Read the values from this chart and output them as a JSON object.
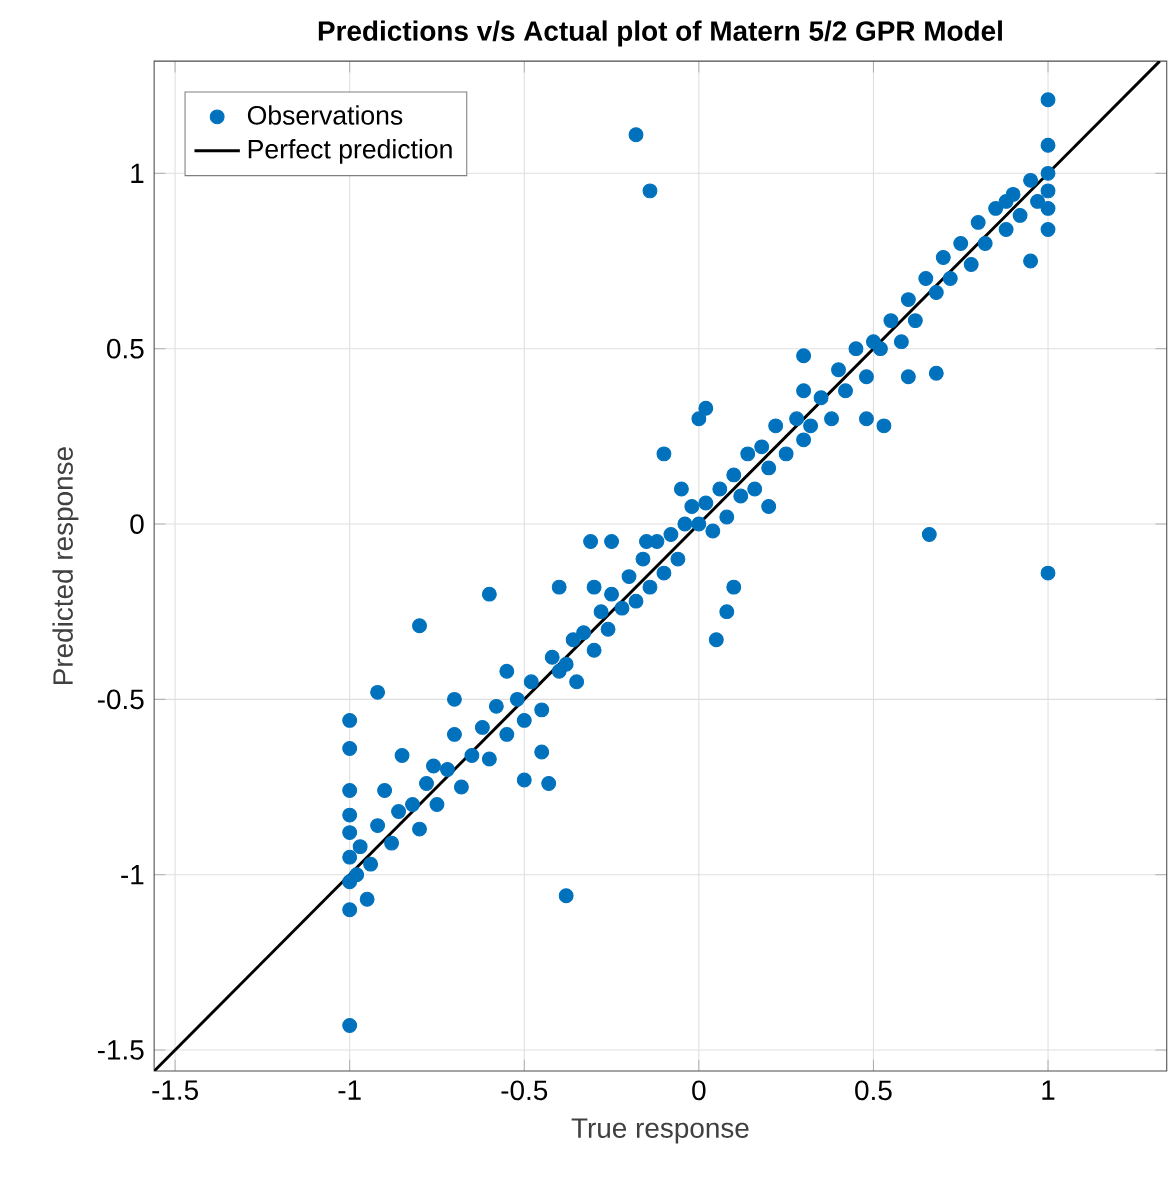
{
  "chart_data": {
    "type": "scatter",
    "title": "Predictions v/s Actual plot of Matern 5/2 GPR Model",
    "xlabel": "True response",
    "ylabel": "Predicted response",
    "xlim": [
      -1.56,
      1.34
    ],
    "ylim": [
      -1.56,
      1.32
    ],
    "xticks": [
      -1.5,
      -1,
      -0.5,
      0,
      0.5,
      1
    ],
    "yticks": [
      -1.5,
      -1,
      -0.5,
      0,
      0.5,
      1
    ],
    "grid": true,
    "legend": "top left",
    "marker": "circle",
    "series": [
      {
        "name": "Observations",
        "color": "#0072bd",
        "x": [
          -1,
          -1,
          -1,
          -1,
          -1,
          -1,
          -1,
          -0.98,
          -0.97,
          -0.95,
          -0.94,
          -0.92,
          -0.9,
          -0.88,
          -0.86,
          -0.85,
          -0.82,
          -0.8,
          -0.78,
          -0.76,
          -0.75,
          -0.72,
          -0.7,
          -0.68,
          -0.65,
          -0.62,
          -0.6,
          -0.58,
          -0.55,
          -0.52,
          -0.5,
          -0.5,
          -0.48,
          -0.45,
          -0.43,
          -0.42,
          -0.4,
          -0.38,
          -0.36,
          -0.35,
          -0.33,
          -0.3,
          -0.3,
          -0.28,
          -0.26,
          -0.25,
          -0.22,
          -0.2,
          -0.18,
          -0.16,
          -0.14,
          -0.12,
          -0.1,
          -0.08,
          -0.06,
          -0.05,
          -0.04,
          -0.02,
          0,
          0,
          0.02,
          0.04,
          0.06,
          0.08,
          0.1,
          0.12,
          0.14,
          0.16,
          0.18,
          0.2,
          0.22,
          0.25,
          0.28,
          0.3,
          0.32,
          0.35,
          0.38,
          0.4,
          0.42,
          0.45,
          0.48,
          0.5,
          0.52,
          0.55,
          0.58,
          0.6,
          0.62,
          0.65,
          0.68,
          0.7,
          0.72,
          0.75,
          0.78,
          0.8,
          0.82,
          0.85,
          0.88,
          0.9,
          0.92,
          0.95,
          0.97,
          1,
          1,
          1,
          1,
          1,
          0.95,
          0.6,
          0.48,
          0.3,
          0.2,
          0.1,
          -0.45,
          -0.55,
          -0.7,
          -0.25,
          -0.4,
          0.3,
          0.88,
          -0.18,
          -0.14,
          -1,
          -0.38,
          0.66,
          1,
          1,
          0.68,
          0.53,
          -0.8,
          -0.6,
          -1,
          -0.92,
          0.02,
          -0.1,
          -0.15,
          -0.31,
          0.05,
          0.08
        ],
        "values": [
          -0.95,
          -1.02,
          -0.88,
          -0.83,
          -1.1,
          -0.76,
          -0.64,
          -1,
          -0.92,
          -1.07,
          -0.97,
          -0.86,
          -0.76,
          -0.91,
          -0.82,
          -0.66,
          -0.8,
          -0.87,
          -0.74,
          -0.69,
          -0.8,
          -0.7,
          -0.6,
          -0.75,
          -0.66,
          -0.58,
          -0.67,
          -0.52,
          -0.6,
          -0.5,
          -0.56,
          -0.73,
          -0.45,
          -0.53,
          -0.74,
          -0.38,
          -0.42,
          -0.4,
          -0.33,
          -0.45,
          -0.31,
          -0.36,
          -0.18,
          -0.25,
          -0.3,
          -0.2,
          -0.24,
          -0.15,
          -0.22,
          -0.1,
          -0.18,
          -0.05,
          -0.14,
          -0.03,
          -0.1,
          0.1,
          0,
          0.05,
          0,
          0.3,
          0.06,
          -0.02,
          0.1,
          0.02,
          0.14,
          0.08,
          0.2,
          0.1,
          0.22,
          0.16,
          0.28,
          0.2,
          0.3,
          0.24,
          0.28,
          0.36,
          0.3,
          0.44,
          0.38,
          0.5,
          0.42,
          0.52,
          0.5,
          0.58,
          0.52,
          0.64,
          0.58,
          0.7,
          0.66,
          0.76,
          0.7,
          0.8,
          0.74,
          0.86,
          0.8,
          0.9,
          0.84,
          0.94,
          0.88,
          0.98,
          0.92,
          1,
          0.95,
          0.9,
          1.08,
          0.84,
          0.75,
          0.42,
          0.3,
          0.48,
          0.05,
          -0.18,
          -0.65,
          -0.42,
          -0.5,
          -0.05,
          -0.18,
          0.38,
          0.92,
          1.11,
          0.95,
          -1.43,
          -1.06,
          -0.03,
          -0.14,
          1.21,
          0.43,
          0.28,
          -0.29,
          -0.2,
          -0.56,
          -0.48,
          0.33,
          0.2,
          -0.05,
          -0.05,
          -0.33,
          -0.25
        ]
      },
      {
        "name": "Perfect prediction",
        "type": "line",
        "color": "#000000",
        "marker": "none",
        "x": [
          -1.56,
          1.32
        ],
        "values": [
          -1.56,
          1.32
        ]
      }
    ]
  }
}
